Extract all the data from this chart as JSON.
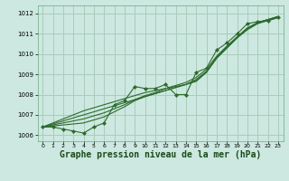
{
  "background_color": "#cce8e0",
  "grid_color": "#aaccbb",
  "line_color": "#2d6b2d",
  "marker_color": "#2d6b2d",
  "xlabel": "Graphe pression niveau de la mer (hPa)",
  "xlabel_fontsize": 7,
  "xlim": [
    -0.5,
    23.5
  ],
  "ylim": [
    1005.7,
    1012.4
  ],
  "yticks": [
    1006,
    1007,
    1008,
    1009,
    1010,
    1011,
    1012
  ],
  "xticks": [
    0,
    1,
    2,
    3,
    4,
    5,
    6,
    7,
    8,
    9,
    10,
    11,
    12,
    13,
    14,
    15,
    16,
    17,
    18,
    19,
    20,
    21,
    22,
    23
  ],
  "x": [
    0,
    1,
    2,
    3,
    4,
    5,
    6,
    7,
    8,
    9,
    10,
    11,
    12,
    13,
    14,
    15,
    16,
    17,
    18,
    19,
    20,
    21,
    22,
    23
  ],
  "y_zigzag": [
    1006.4,
    1006.4,
    1006.3,
    1006.2,
    1006.1,
    1006.4,
    1006.6,
    1007.5,
    1007.7,
    1008.4,
    1008.3,
    1008.3,
    1008.5,
    1008.0,
    1008.0,
    1009.1,
    1009.3,
    1010.2,
    1010.55,
    1011.0,
    1011.5,
    1011.6,
    1011.65,
    1011.8
  ],
  "y_line1": [
    1006.4,
    1006.55,
    1006.7,
    1006.85,
    1007.0,
    1007.15,
    1007.3,
    1007.45,
    1007.6,
    1007.75,
    1007.9,
    1008.05,
    1008.2,
    1008.35,
    1008.5,
    1008.65,
    1009.1,
    1009.8,
    1010.3,
    1010.8,
    1011.2,
    1011.5,
    1011.65,
    1011.8
  ],
  "y_line2": [
    1006.4,
    1006.5,
    1006.6,
    1006.7,
    1006.8,
    1006.95,
    1007.1,
    1007.3,
    1007.5,
    1007.75,
    1007.95,
    1008.1,
    1008.3,
    1008.45,
    1008.6,
    1008.85,
    1009.25,
    1009.9,
    1010.4,
    1010.85,
    1011.25,
    1011.55,
    1011.7,
    1011.85
  ],
  "y_line3": [
    1006.4,
    1006.45,
    1006.5,
    1006.55,
    1006.6,
    1006.75,
    1006.9,
    1007.15,
    1007.4,
    1007.7,
    1007.9,
    1008.05,
    1008.2,
    1008.35,
    1008.5,
    1008.75,
    1009.15,
    1009.85,
    1010.35,
    1010.85,
    1011.3,
    1011.55,
    1011.7,
    1011.85
  ],
  "y_line4": [
    1006.4,
    1006.6,
    1006.8,
    1007.0,
    1007.2,
    1007.35,
    1007.5,
    1007.65,
    1007.8,
    1007.95,
    1008.1,
    1008.2,
    1008.3,
    1008.4,
    1008.5,
    1008.7,
    1009.1,
    1009.8,
    1010.3,
    1010.8,
    1011.25,
    1011.55,
    1011.7,
    1011.85
  ]
}
